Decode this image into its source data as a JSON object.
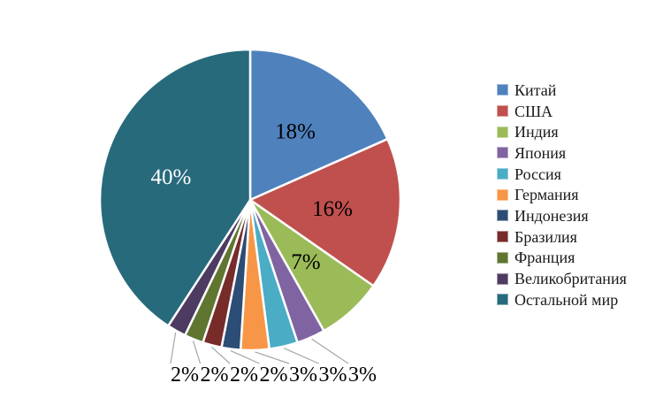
{
  "background_color": "#ffffff",
  "chart_data": {
    "type": "pie",
    "title": "",
    "unit": "%",
    "direction": "clockwise",
    "start_angle_deg": 0,
    "legend_position": "right",
    "separator_color": "#ffffff",
    "leader_line_color": "#a6a6a6",
    "inside_label_color_default": "#000000",
    "outside_label_row_text": "2%2%2%2%3%3%3%",
    "slices": [
      {
        "name": "Китай",
        "value": 18,
        "label": "18%",
        "color": "#4F81BD",
        "label_inside": true,
        "label_color": "#000000"
      },
      {
        "name": "США",
        "value": 16,
        "label": "16%",
        "color": "#C0504D",
        "label_inside": true,
        "label_color": "#000000"
      },
      {
        "name": "Индия",
        "value": 7,
        "label": "7%",
        "color": "#9BBB59",
        "label_inside": true,
        "label_color": "#000000"
      },
      {
        "name": "Япония",
        "value": 3,
        "label": "3%",
        "color": "#8064A2",
        "label_inside": false,
        "label_color": "#000000"
      },
      {
        "name": "Россия",
        "value": 3,
        "label": "3%",
        "color": "#4BACC6",
        "label_inside": false,
        "label_color": "#000000"
      },
      {
        "name": "Германия",
        "value": 3,
        "label": "3%",
        "color": "#F79646",
        "label_inside": false,
        "label_color": "#000000"
      },
      {
        "name": "Индонезия",
        "value": 2,
        "label": "2%",
        "color": "#2C4D75",
        "label_inside": false,
        "label_color": "#000000"
      },
      {
        "name": "Бразилия",
        "value": 2,
        "label": "2%",
        "color": "#772C2A",
        "label_inside": false,
        "label_color": "#000000"
      },
      {
        "name": "Франция",
        "value": 2,
        "label": "2%",
        "color": "#5F7530",
        "label_inside": false,
        "label_color": "#000000"
      },
      {
        "name": "Великобритания",
        "value": 2,
        "label": "2%",
        "color": "#4D3B62",
        "label_inside": false,
        "label_color": "#000000"
      },
      {
        "name": "Остальной мир",
        "value": 40,
        "label": "40%",
        "color": "#276A7C",
        "label_inside": true,
        "label_color": "#ffffff"
      }
    ],
    "legend_items": [
      "Китай",
      "США",
      "Индия",
      "Япония",
      "Россия",
      "Германия",
      "Индонезия",
      "Бразилия",
      "Франция",
      "Великобритания",
      "Остальной мир"
    ]
  }
}
